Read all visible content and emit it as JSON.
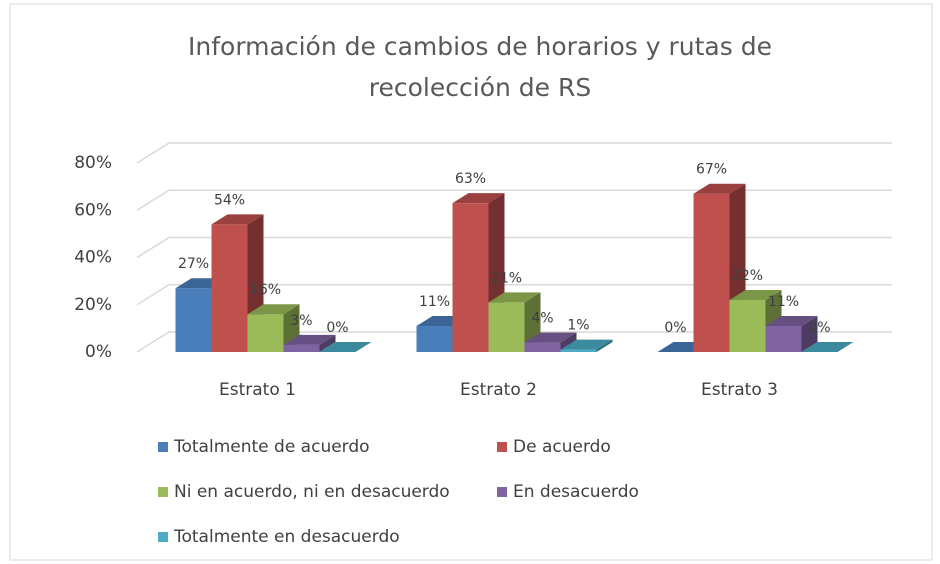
{
  "chart_data": {
    "type": "bar3d",
    "title": "Información de cambios de horarios y rutas de recolección de RS",
    "categories": [
      "Estrato 1",
      "Estrato 2",
      "Estrato 3"
    ],
    "series": [
      {
        "name": "Totalmente de acuerdo",
        "color": "#4a7ebb",
        "values": [
          27,
          11,
          0
        ],
        "value_labels": [
          "27%",
          "11%",
          "0%"
        ]
      },
      {
        "name": "De acuerdo",
        "color": "#c0504d",
        "values": [
          54,
          63,
          67
        ],
        "value_labels": [
          "54%",
          "63%",
          "67%"
        ]
      },
      {
        "name": "Ni en acuerdo, ni en desacuerdo",
        "color": "#9bbb59",
        "values": [
          16,
          21,
          22
        ],
        "value_labels": [
          "16%",
          "21%",
          "22%"
        ]
      },
      {
        "name": "En desacuerdo",
        "color": "#8064a2",
        "values": [
          3,
          4,
          11
        ],
        "value_labels": [
          "3%",
          "4%",
          "11%"
        ]
      },
      {
        "name": "Totalmente en desacuerdo",
        "color": "#4bacc6",
        "values": [
          0,
          1,
          0
        ],
        "value_labels": [
          "0%",
          "1%",
          "0%"
        ]
      }
    ],
    "ylim": [
      0,
      80
    ],
    "yticks": [
      {
        "value": 0,
        "label": "0%"
      },
      {
        "value": 20,
        "label": "20%"
      },
      {
        "value": 40,
        "label": "40%"
      },
      {
        "value": 60,
        "label": "60%"
      },
      {
        "value": 80,
        "label": "80%"
      }
    ],
    "grid": true,
    "legend": "bottom"
  }
}
